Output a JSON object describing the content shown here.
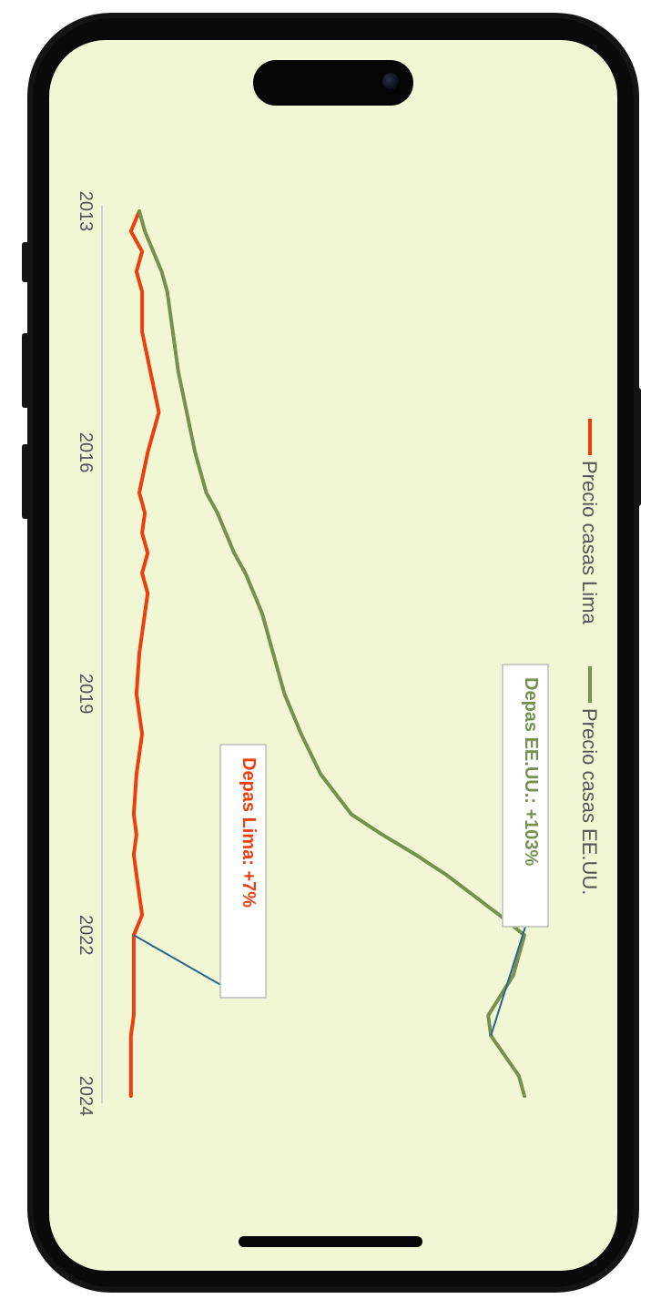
{
  "chart_data": {
    "type": "line",
    "orientation": "rotated 90 degrees clockwise",
    "x_ticks": [
      "2013",
      "2016",
      "2019",
      "2022",
      "2024"
    ],
    "series": [
      {
        "name": "Precio casas Lima",
        "color": "#ef3e0e",
        "points": [
          [
            "2013",
            100
          ],
          [
            "2013.25",
            97
          ],
          [
            "2013.5",
            101
          ],
          [
            "2013.75",
            99
          ],
          [
            "2014",
            101
          ],
          [
            "2014.5",
            101
          ],
          [
            "2015",
            104
          ],
          [
            "2015.5",
            107
          ],
          [
            "2016",
            103
          ],
          [
            "2016.5",
            100
          ],
          [
            "2016.75",
            102
          ],
          [
            "2017",
            101
          ],
          [
            "2017.25",
            103
          ],
          [
            "2017.5",
            101
          ],
          [
            "2017.75",
            103
          ],
          [
            "2018",
            102
          ],
          [
            "2018.5",
            100
          ],
          [
            "2019",
            99
          ],
          [
            "2019.25",
            100
          ],
          [
            "2019.5",
            101
          ],
          [
            "2020",
            99
          ],
          [
            "2020.5",
            98
          ],
          [
            "2020.75",
            99
          ],
          [
            "2021",
            98
          ],
          [
            "2021.25",
            99
          ],
          [
            "2021.75",
            101
          ],
          [
            "2022",
            98
          ],
          [
            "2022.5",
            98
          ],
          [
            "2023",
            98
          ],
          [
            "2023.25",
            97
          ],
          [
            "2023.5",
            97
          ],
          [
            "2023.75",
            97
          ],
          [
            "2024",
            97
          ]
        ]
      },
      {
        "name": "Precio casas EE.UU.",
        "color": "#76914f",
        "points": [
          [
            "2013",
            100
          ],
          [
            "2013.25",
            102
          ],
          [
            "2013.5",
            105
          ],
          [
            "2013.75",
            108
          ],
          [
            "2014",
            110
          ],
          [
            "2014.5",
            112
          ],
          [
            "2015",
            114
          ],
          [
            "2015.5",
            117
          ],
          [
            "2016",
            120
          ],
          [
            "2016.5",
            124
          ],
          [
            "2016.75",
            128
          ],
          [
            "2017",
            131
          ],
          [
            "2017.25",
            134
          ],
          [
            "2017.5",
            138
          ],
          [
            "2017.75",
            141
          ],
          [
            "2018",
            144
          ],
          [
            "2018.5",
            148
          ],
          [
            "2019",
            152
          ],
          [
            "2019.25",
            155
          ],
          [
            "2019.5",
            158
          ],
          [
            "2020",
            165
          ],
          [
            "2020.5",
            176
          ],
          [
            "2020.75",
            187
          ],
          [
            "2021",
            199
          ],
          [
            "2021.25",
            210
          ],
          [
            "2021.75",
            229
          ],
          [
            "2022",
            238
          ],
          [
            "2022.5",
            234
          ],
          [
            "2023",
            225
          ],
          [
            "2023.25",
            226
          ],
          [
            "2023.5",
            231
          ],
          [
            "2023.75",
            236
          ],
          [
            "2024",
            238
          ]
        ]
      }
    ],
    "annotations": [
      {
        "text": "Depas Lima: +7%",
        "color": "#ef3e0e"
      },
      {
        "text": "Depas EE.UU.: +103%",
        "color": "#76914f"
      }
    ],
    "legend_position": "right",
    "grid": false
  }
}
